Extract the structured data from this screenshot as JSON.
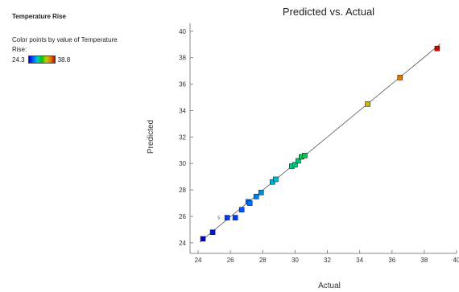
{
  "legend": {
    "heading": "Temperature Rise",
    "description": "Color points by value of Temperature Rise:",
    "min_label": "24.3",
    "max_label": "38.8",
    "gradient_colors": [
      "#0000c8",
      "#0060ff",
      "#00c8c8",
      "#00c800",
      "#c8c800",
      "#e08000",
      "#c80000"
    ]
  },
  "chart_data": {
    "type": "scatter",
    "title": "Predicted vs. Actual",
    "xlabel": "Actual",
    "ylabel": "Predicted",
    "xlim": [
      23.5,
      40
    ],
    "ylim": [
      23.2,
      40.6
    ],
    "xticks": [
      24,
      26,
      28,
      30,
      32,
      34,
      36,
      38,
      40
    ],
    "yticks": [
      24,
      26,
      28,
      30,
      32,
      34,
      36,
      38,
      40
    ],
    "reference_line": [
      [
        24.3,
        24.3
      ],
      [
        38.8,
        38.8
      ]
    ],
    "points": [
      {
        "x": 24.3,
        "y": 24.3
      },
      {
        "x": 24.9,
        "y": 24.8
      },
      {
        "x": 25.8,
        "y": 25.9
      },
      {
        "x": 26.3,
        "y": 25.9
      },
      {
        "x": 26.7,
        "y": 26.5
      },
      {
        "x": 27.1,
        "y": 27.1
      },
      {
        "x": 27.2,
        "y": 27.0
      },
      {
        "x": 27.6,
        "y": 27.5
      },
      {
        "x": 27.9,
        "y": 27.8
      },
      {
        "x": 28.6,
        "y": 28.6
      },
      {
        "x": 28.8,
        "y": 28.8
      },
      {
        "x": 29.8,
        "y": 29.8
      },
      {
        "x": 30.0,
        "y": 29.9
      },
      {
        "x": 30.2,
        "y": 30.2
      },
      {
        "x": 30.4,
        "y": 30.5
      },
      {
        "x": 30.6,
        "y": 30.6
      },
      {
        "x": 34.5,
        "y": 34.5
      },
      {
        "x": 36.5,
        "y": 36.5
      },
      {
        "x": 38.8,
        "y": 38.7
      }
    ],
    "annotations": [
      {
        "text": "5",
        "x": 25.8,
        "y": 25.9
      }
    ]
  }
}
